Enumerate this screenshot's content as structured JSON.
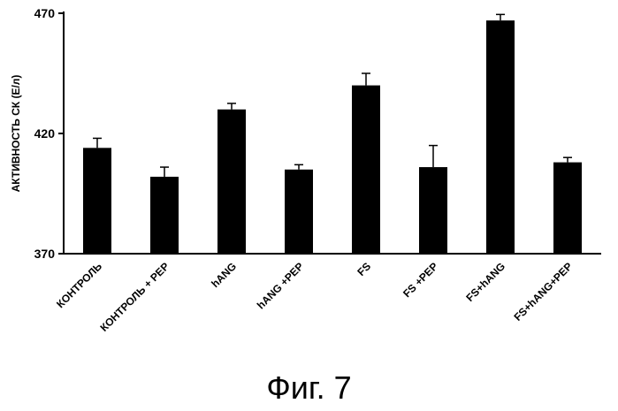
{
  "caption": "Фиг. 7",
  "chart_data": {
    "type": "bar",
    "ylabel": "АКТИВНОСТЬ СК (Е/л)",
    "xlabel": "",
    "ylim": [
      370,
      470
    ],
    "yticks": [
      370,
      420,
      470
    ],
    "categories": [
      "КОНТРОЛЬ",
      "КОНТРОЛЬ + PEP",
      "hANG",
      "hANG +PEP",
      "FS",
      "FS +PEP",
      "FS+hANG",
      "FS+hANG+PEP"
    ],
    "values": [
      414,
      402,
      430,
      405,
      440,
      406,
      467,
      408
    ],
    "errors": [
      4,
      4,
      2.5,
      2,
      5,
      9,
      2.5,
      2
    ],
    "bar_color": "#000000",
    "grid": false
  }
}
